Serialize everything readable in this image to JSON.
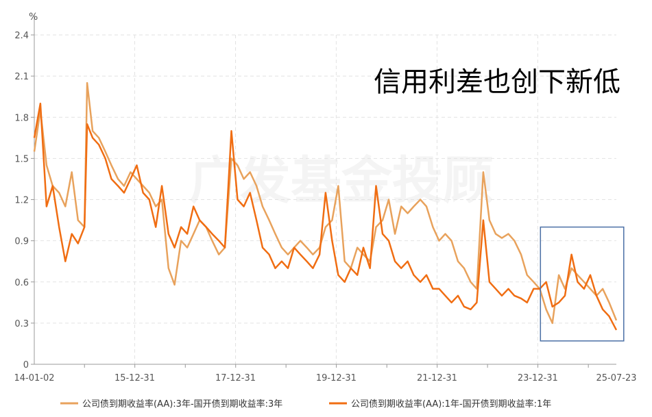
{
  "chart_data": {
    "type": "line",
    "title": "",
    "headline": "信用利差也创下新低",
    "unit": "%",
    "watermark_text": "广发基金投顾",
    "xlim": [
      "2014-01-02",
      "2025-07-23"
    ],
    "ylim": [
      0,
      2.4
    ],
    "y_ticks": [
      0,
      0.3,
      0.6,
      0.9,
      1.2,
      1.5,
      1.8,
      2.1,
      2.4
    ],
    "y_tick_labels": [
      "0",
      "0.3",
      "0.6",
      "0.9",
      "1.2",
      "1.5",
      "1.8",
      "2.1",
      "2.4"
    ],
    "x_ticks": [
      "2014-01-02",
      "2015-12-31",
      "2017-12-31",
      "2019-12-31",
      "2021-12-31",
      "2023-12-31",
      "2025-07-23"
    ],
    "x_tick_labels": [
      "14-01-02",
      "15-12-31",
      "17-12-31",
      "19-12-31",
      "21-12-31",
      "23-12-31",
      "25-07-23"
    ],
    "grid": true,
    "legend_position": "bottom",
    "highlight_box": {
      "x_range": [
        "2024-01-20",
        "2025-09-15"
      ],
      "y_range": [
        0.17,
        1.0
      ],
      "color": "#4a6fa5"
    },
    "series": [
      {
        "name": "公司债到期收益率(AA):3年-国开债到期收益率:3年",
        "color": "#e8a25c",
        "x": [
          "2014-01-02",
          "2014-02-15",
          "2014-04-01",
          "2014-05-15",
          "2014-07-01",
          "2014-08-15",
          "2014-10-01",
          "2014-11-15",
          "2015-01-01",
          "2015-01-20",
          "2015-03-01",
          "2015-04-15",
          "2015-06-01",
          "2015-07-15",
          "2015-09-01",
          "2015-10-15",
          "2015-12-01",
          "2016-01-15",
          "2016-03-01",
          "2016-04-15",
          "2016-06-01",
          "2016-07-15",
          "2016-09-01",
          "2016-10-15",
          "2016-12-01",
          "2017-01-15",
          "2017-03-01",
          "2017-04-15",
          "2017-06-01",
          "2017-07-15",
          "2017-09-01",
          "2017-10-15",
          "2017-12-01",
          "2018-01-15",
          "2018-03-01",
          "2018-04-15",
          "2018-06-01",
          "2018-07-15",
          "2018-09-01",
          "2018-10-15",
          "2018-12-01",
          "2019-01-15",
          "2019-03-01",
          "2019-04-15",
          "2019-06-01",
          "2019-07-15",
          "2019-09-01",
          "2019-10-15",
          "2019-12-01",
          "2020-01-15",
          "2020-03-01",
          "2020-04-15",
          "2020-06-01",
          "2020-07-15",
          "2020-09-01",
          "2020-10-15",
          "2020-12-01",
          "2021-01-15",
          "2021-03-01",
          "2021-04-15",
          "2021-06-01",
          "2021-07-15",
          "2021-09-01",
          "2021-10-15",
          "2021-12-01",
          "2022-01-15",
          "2022-03-01",
          "2022-04-15",
          "2022-06-01",
          "2022-07-15",
          "2022-09-01",
          "2022-10-15",
          "2022-12-01",
          "2023-01-15",
          "2023-03-01",
          "2023-04-15",
          "2023-06-01",
          "2023-07-15",
          "2023-09-01",
          "2023-10-15",
          "2023-12-01",
          "2024-01-15",
          "2024-03-01",
          "2024-04-15",
          "2024-06-01",
          "2024-07-15",
          "2024-09-01",
          "2024-10-15",
          "2024-12-01",
          "2025-01-15",
          "2025-03-01",
          "2025-04-15",
          "2025-06-01",
          "2025-07-23"
        ],
        "y": [
          1.55,
          1.85,
          1.45,
          1.3,
          1.25,
          1.15,
          1.4,
          1.05,
          1.0,
          2.05,
          1.7,
          1.65,
          1.55,
          1.45,
          1.35,
          1.3,
          1.4,
          1.35,
          1.3,
          1.25,
          1.15,
          1.2,
          0.7,
          0.58,
          0.9,
          0.85,
          0.95,
          1.05,
          1.0,
          0.9,
          0.8,
          0.85,
          1.5,
          1.45,
          1.35,
          1.4,
          1.3,
          1.15,
          1.05,
          0.95,
          0.85,
          0.8,
          0.85,
          0.9,
          0.85,
          0.8,
          0.85,
          1.0,
          1.05,
          1.3,
          0.75,
          0.7,
          0.85,
          0.8,
          0.75,
          1.0,
          1.05,
          1.2,
          0.95,
          1.15,
          1.1,
          1.15,
          1.2,
          1.15,
          1.0,
          0.9,
          0.95,
          0.9,
          0.75,
          0.7,
          0.6,
          0.55,
          1.4,
          1.05,
          0.95,
          0.92,
          0.95,
          0.9,
          0.8,
          0.65,
          0.6,
          0.55,
          0.4,
          0.3,
          0.65,
          0.55,
          0.7,
          0.65,
          0.6,
          0.55,
          0.5,
          0.55,
          0.45,
          0.32
        ]
      },
      {
        "name": "公司债到期收益率(AA):1年-国开债到期收益率:1年",
        "color": "#f06d12",
        "x": [
          "2014-01-02",
          "2014-02-15",
          "2014-04-01",
          "2014-05-15",
          "2014-07-01",
          "2014-08-15",
          "2014-10-01",
          "2014-11-15",
          "2015-01-01",
          "2015-01-20",
          "2015-03-01",
          "2015-04-15",
          "2015-06-01",
          "2015-07-15",
          "2015-09-01",
          "2015-10-15",
          "2015-12-01",
          "2016-01-15",
          "2016-03-01",
          "2016-04-15",
          "2016-06-01",
          "2016-07-15",
          "2016-09-01",
          "2016-10-15",
          "2016-12-01",
          "2017-01-15",
          "2017-03-01",
          "2017-04-15",
          "2017-06-01",
          "2017-07-15",
          "2017-09-01",
          "2017-10-15",
          "2017-12-01",
          "2018-01-15",
          "2018-03-01",
          "2018-04-15",
          "2018-06-01",
          "2018-07-15",
          "2018-09-01",
          "2018-10-15",
          "2018-12-01",
          "2019-01-15",
          "2019-03-01",
          "2019-04-15",
          "2019-06-01",
          "2019-07-15",
          "2019-09-01",
          "2019-10-15",
          "2019-12-01",
          "2020-01-15",
          "2020-03-01",
          "2020-04-15",
          "2020-06-01",
          "2020-07-15",
          "2020-09-01",
          "2020-10-15",
          "2020-12-01",
          "2021-01-15",
          "2021-03-01",
          "2021-04-15",
          "2021-06-01",
          "2021-07-15",
          "2021-09-01",
          "2021-10-15",
          "2021-12-01",
          "2022-01-15",
          "2022-03-01",
          "2022-04-15",
          "2022-06-01",
          "2022-07-15",
          "2022-09-01",
          "2022-10-15",
          "2022-12-01",
          "2023-01-15",
          "2023-03-01",
          "2023-04-15",
          "2023-06-01",
          "2023-07-15",
          "2023-09-01",
          "2023-10-15",
          "2023-12-01",
          "2024-01-15",
          "2024-03-01",
          "2024-04-15",
          "2024-06-01",
          "2024-07-15",
          "2024-09-01",
          "2024-10-15",
          "2024-12-01",
          "2025-01-15",
          "2025-03-01",
          "2025-04-15",
          "2025-06-01",
          "2025-07-23"
        ],
        "y": [
          1.65,
          1.9,
          1.15,
          1.3,
          1.0,
          0.75,
          0.95,
          0.88,
          1.0,
          1.75,
          1.65,
          1.6,
          1.5,
          1.35,
          1.3,
          1.25,
          1.35,
          1.45,
          1.25,
          1.2,
          1.0,
          1.3,
          0.95,
          0.85,
          1.0,
          0.95,
          1.15,
          1.05,
          1.0,
          0.95,
          0.9,
          0.85,
          1.7,
          1.2,
          1.15,
          1.25,
          1.05,
          0.85,
          0.8,
          0.7,
          0.75,
          0.7,
          0.85,
          0.8,
          0.75,
          0.7,
          0.8,
          1.25,
          0.9,
          0.65,
          0.6,
          0.7,
          0.65,
          0.85,
          0.7,
          1.3,
          0.95,
          0.9,
          0.75,
          0.7,
          0.75,
          0.65,
          0.6,
          0.65,
          0.55,
          0.55,
          0.5,
          0.45,
          0.5,
          0.42,
          0.4,
          0.45,
          1.05,
          0.6,
          0.55,
          0.5,
          0.55,
          0.5,
          0.48,
          0.45,
          0.55,
          0.55,
          0.6,
          0.42,
          0.45,
          0.5,
          0.8,
          0.6,
          0.55,
          0.65,
          0.5,
          0.4,
          0.35,
          0.25
        ]
      }
    ]
  }
}
